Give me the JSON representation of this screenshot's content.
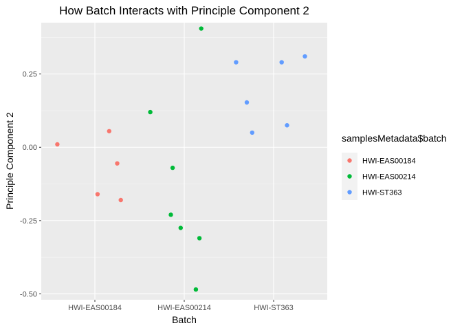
{
  "chart_data": {
    "type": "scatter",
    "title": "How Batch Interacts with Principle Component 2",
    "xlabel": "Batch",
    "ylabel": "Principle Component 2",
    "categories": [
      "HWI-EAS00184",
      "HWI-EAS00214",
      "HWI-ST363"
    ],
    "ylim": [
      -0.52,
      0.425
    ],
    "yticks": [
      -0.5,
      -0.25,
      0.0,
      0.25
    ],
    "ytick_labels": [
      "-0.50",
      "-0.25",
      "0.00",
      "0.25"
    ],
    "grid": true,
    "jitter": true,
    "legend": {
      "title": "samplesMetadata$batch",
      "position": "right"
    },
    "series": [
      {
        "name": "HWI-EAS00184",
        "color": "#F8766D",
        "points": [
          {
            "x": 0.58,
            "y": 0.01
          },
          {
            "x": 1.03,
            "y": -0.16
          },
          {
            "x": 1.16,
            "y": 0.055
          },
          {
            "x": 1.25,
            "y": -0.055
          },
          {
            "x": 1.29,
            "y": -0.18
          }
        ]
      },
      {
        "name": "HWI-EAS00214",
        "color": "#00BA38",
        "points": [
          {
            "x": 1.62,
            "y": 0.12
          },
          {
            "x": 1.85,
            "y": -0.23
          },
          {
            "x": 1.87,
            "y": -0.07
          },
          {
            "x": 1.96,
            "y": -0.275
          },
          {
            "x": 2.13,
            "y": -0.485
          },
          {
            "x": 2.17,
            "y": -0.31
          },
          {
            "x": 2.19,
            "y": 0.405
          }
        ]
      },
      {
        "name": "HWI-ST363",
        "color": "#619CFF",
        "points": [
          {
            "x": 2.58,
            "y": 0.29
          },
          {
            "x": 2.7,
            "y": 0.153
          },
          {
            "x": 2.76,
            "y": 0.05
          },
          {
            "x": 3.09,
            "y": 0.29
          },
          {
            "x": 3.15,
            "y": 0.075
          },
          {
            "x": 3.35,
            "y": 0.31
          }
        ]
      }
    ]
  }
}
